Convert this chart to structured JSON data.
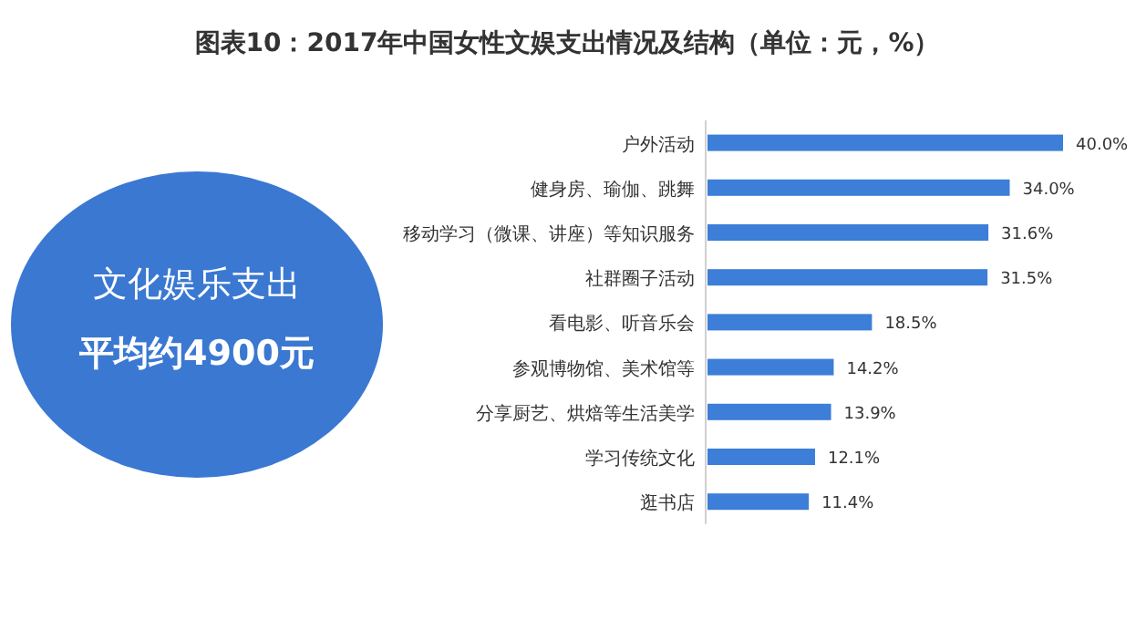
{
  "chart_data": {
    "type": "bar",
    "orientation": "horizontal",
    "title": "图表10：2017年中国女性文娱支出情况及结构（单位：元，%）",
    "categories": [
      "户外活动",
      "健身房、瑜伽、跳舞",
      "移动学习（微课、讲座）等知识服务",
      "社群圈子活动",
      "看电影、听音乐会",
      "参观博物馆、美术馆等",
      "分享厨艺、烘焙等生活美学",
      "学习传统文化",
      "逛书店"
    ],
    "values": [
      40.0,
      34.0,
      31.6,
      31.5,
      18.5,
      14.2,
      13.9,
      12.1,
      11.4
    ],
    "value_labels": [
      "40.0%",
      "34.0%",
      "31.6%",
      "31.5%",
      "18.5%",
      "14.2%",
      "13.9%",
      "12.1%",
      "11.4%"
    ],
    "color": "#3c7ed8",
    "annotations": [
      "文化娱乐支出",
      "平均约4900元"
    ]
  }
}
